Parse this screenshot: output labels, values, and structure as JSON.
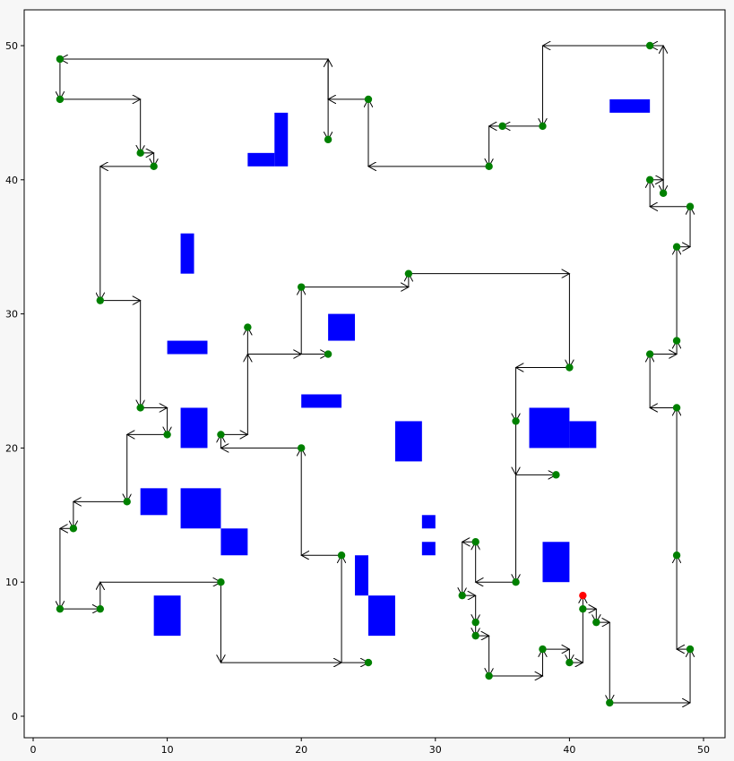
{
  "chart_data": {
    "type": "scatter",
    "title": "",
    "xlabel": "",
    "ylabel": "",
    "xlim": [
      -0.7,
      51.8
    ],
    "ylim": [
      -1.7,
      52.7
    ],
    "xticks": [
      0,
      10,
      20,
      30,
      40,
      50
    ],
    "yticks": [
      0,
      10,
      20,
      30,
      40,
      50
    ],
    "grid": false,
    "colors": {
      "obstacle": "#0000ff",
      "point": "#008000",
      "start": "#ff0000",
      "arrow": "#000000",
      "background": "#ffffff"
    },
    "obstacles": [
      [
        16,
        41,
        2,
        1
      ],
      [
        18,
        41,
        1,
        4
      ],
      [
        43,
        45,
        3,
        1
      ],
      [
        11,
        33,
        1,
        3
      ],
      [
        10,
        27,
        3,
        1
      ],
      [
        22,
        28,
        2,
        2
      ],
      [
        20,
        23,
        3,
        1
      ],
      [
        11,
        20,
        2,
        3
      ],
      [
        27,
        19,
        2,
        3
      ],
      [
        37,
        20,
        3,
        3
      ],
      [
        40,
        20,
        2,
        2
      ],
      [
        8,
        15,
        2,
        2
      ],
      [
        11,
        14,
        3,
        3
      ],
      [
        14,
        12,
        2,
        2
      ],
      [
        29,
        14,
        1,
        1
      ],
      [
        29,
        12,
        1,
        1
      ],
      [
        24,
        9,
        1,
        3
      ],
      [
        25,
        6,
        2,
        3
      ],
      [
        9,
        6,
        2,
        3
      ],
      [
        38,
        10,
        2,
        3
      ]
    ],
    "points": [
      [
        46,
        50
      ],
      [
        2,
        49
      ],
      [
        2,
        46
      ],
      [
        25,
        46
      ],
      [
        8,
        42
      ],
      [
        22,
        43
      ],
      [
        35,
        44
      ],
      [
        38,
        44
      ],
      [
        9,
        41
      ],
      [
        34,
        41
      ],
      [
        46,
        40
      ],
      [
        47,
        39
      ],
      [
        49,
        38
      ],
      [
        48,
        35
      ],
      [
        28,
        33
      ],
      [
        20,
        32
      ],
      [
        5,
        31
      ],
      [
        16,
        29
      ],
      [
        48,
        28
      ],
      [
        22,
        27
      ],
      [
        46,
        27
      ],
      [
        40,
        26
      ],
      [
        8,
        23
      ],
      [
        48,
        23
      ],
      [
        36,
        22
      ],
      [
        10,
        21
      ],
      [
        14,
        21
      ],
      [
        20,
        20
      ],
      [
        39,
        18
      ],
      [
        7,
        16
      ],
      [
        3,
        14
      ],
      [
        33,
        13
      ],
      [
        23,
        12
      ],
      [
        48,
        12
      ],
      [
        14,
        10
      ],
      [
        36,
        10
      ],
      [
        32,
        9
      ],
      [
        2,
        8
      ],
      [
        5,
        8
      ],
      [
        41,
        8
      ],
      [
        33,
        7
      ],
      [
        42,
        7
      ],
      [
        33,
        6
      ],
      [
        38,
        5
      ],
      [
        49,
        5
      ],
      [
        25,
        4
      ],
      [
        40,
        4
      ],
      [
        34,
        3
      ],
      [
        43,
        1
      ]
    ],
    "start": [
      41,
      9
    ],
    "path_segments": [
      [
        [
          46,
          50
        ],
        [
          38,
          50
        ]
      ],
      [
        [
          38,
          50
        ],
        [
          38,
          44
        ]
      ],
      [
        [
          38,
          44
        ],
        [
          35,
          44
        ]
      ],
      [
        [
          35,
          44
        ],
        [
          34,
          44
        ]
      ],
      [
        [
          34,
          44
        ],
        [
          34,
          41
        ]
      ],
      [
        [
          34,
          41
        ],
        [
          25,
          41
        ]
      ],
      [
        [
          25,
          41
        ],
        [
          25,
          46
        ]
      ],
      [
        [
          25,
          46
        ],
        [
          22,
          46
        ]
      ],
      [
        [
          22,
          46
        ],
        [
          22,
          49
        ]
      ],
      [
        [
          22,
          49
        ],
        [
          22,
          43
        ]
      ],
      [
        [
          22,
          49
        ],
        [
          2,
          49
        ]
      ],
      [
        [
          2,
          49
        ],
        [
          2,
          46
        ]
      ],
      [
        [
          2,
          46
        ],
        [
          8,
          46
        ]
      ],
      [
        [
          8,
          46
        ],
        [
          8,
          42
        ]
      ],
      [
        [
          8,
          42
        ],
        [
          9,
          42
        ]
      ],
      [
        [
          9,
          42
        ],
        [
          9,
          41
        ]
      ],
      [
        [
          9,
          41
        ],
        [
          5,
          41
        ]
      ],
      [
        [
          5,
          41
        ],
        [
          5,
          31
        ]
      ],
      [
        [
          5,
          31
        ],
        [
          8,
          31
        ]
      ],
      [
        [
          8,
          31
        ],
        [
          8,
          23
        ]
      ],
      [
        [
          8,
          23
        ],
        [
          10,
          23
        ]
      ],
      [
        [
          10,
          23
        ],
        [
          10,
          21
        ]
      ],
      [
        [
          10,
          21
        ],
        [
          7,
          21
        ]
      ],
      [
        [
          7,
          21
        ],
        [
          7,
          16
        ]
      ],
      [
        [
          7,
          16
        ],
        [
          3,
          16
        ]
      ],
      [
        [
          3,
          16
        ],
        [
          3,
          14
        ]
      ],
      [
        [
          3,
          14
        ],
        [
          2,
          14
        ]
      ],
      [
        [
          2,
          14
        ],
        [
          2,
          8
        ]
      ],
      [
        [
          2,
          8
        ],
        [
          5,
          8
        ]
      ],
      [
        [
          5,
          8
        ],
        [
          5,
          10
        ]
      ],
      [
        [
          5,
          10
        ],
        [
          14,
          10
        ]
      ],
      [
        [
          14,
          10
        ],
        [
          14,
          4
        ]
      ],
      [
        [
          14,
          4
        ],
        [
          23,
          4
        ]
      ],
      [
        [
          23,
          4
        ],
        [
          25,
          4
        ]
      ],
      [
        [
          23,
          4
        ],
        [
          23,
          12
        ]
      ],
      [
        [
          23,
          12
        ],
        [
          20,
          12
        ]
      ],
      [
        [
          20,
          12
        ],
        [
          20,
          20
        ]
      ],
      [
        [
          20,
          20
        ],
        [
          14,
          20
        ]
      ],
      [
        [
          14,
          20
        ],
        [
          14,
          21
        ]
      ],
      [
        [
          14,
          21
        ],
        [
          16,
          21
        ]
      ],
      [
        [
          16,
          21
        ],
        [
          16,
          27
        ]
      ],
      [
        [
          16,
          27
        ],
        [
          16,
          29
        ]
      ],
      [
        [
          16,
          27
        ],
        [
          20,
          27
        ]
      ],
      [
        [
          20,
          27
        ],
        [
          22,
          27
        ]
      ],
      [
        [
          20,
          27
        ],
        [
          20,
          32
        ]
      ],
      [
        [
          20,
          32
        ],
        [
          28,
          32
        ]
      ],
      [
        [
          28,
          32
        ],
        [
          28,
          33
        ]
      ],
      [
        [
          28,
          33
        ],
        [
          40,
          33
        ]
      ],
      [
        [
          40,
          33
        ],
        [
          40,
          26
        ]
      ],
      [
        [
          40,
          26
        ],
        [
          36,
          26
        ]
      ],
      [
        [
          36,
          26
        ],
        [
          36,
          22
        ]
      ],
      [
        [
          36,
          22
        ],
        [
          36,
          18
        ]
      ],
      [
        [
          36,
          18
        ],
        [
          39,
          18
        ]
      ],
      [
        [
          36,
          18
        ],
        [
          36,
          10
        ]
      ],
      [
        [
          36,
          10
        ],
        [
          33,
          10
        ]
      ],
      [
        [
          33,
          10
        ],
        [
          33,
          13
        ]
      ],
      [
        [
          33,
          13
        ],
        [
          32,
          13
        ]
      ],
      [
        [
          32,
          13
        ],
        [
          32,
          9
        ]
      ],
      [
        [
          32,
          9
        ],
        [
          33,
          9
        ]
      ],
      [
        [
          33,
          9
        ],
        [
          33,
          7
        ]
      ],
      [
        [
          33,
          7
        ],
        [
          33,
          6
        ]
      ],
      [
        [
          33,
          6
        ],
        [
          34,
          6
        ]
      ],
      [
        [
          34,
          6
        ],
        [
          34,
          3
        ]
      ],
      [
        [
          34,
          3
        ],
        [
          38,
          3
        ]
      ],
      [
        [
          38,
          3
        ],
        [
          38,
          5
        ]
      ],
      [
        [
          38,
          5
        ],
        [
          40,
          5
        ]
      ],
      [
        [
          40,
          5
        ],
        [
          40,
          4
        ]
      ],
      [
        [
          40,
          4
        ],
        [
          41,
          4
        ]
      ],
      [
        [
          41,
          4
        ],
        [
          41,
          9
        ]
      ],
      [
        [
          41,
          8
        ],
        [
          42,
          8
        ]
      ],
      [
        [
          42,
          8
        ],
        [
          42,
          7
        ]
      ],
      [
        [
          42,
          7
        ],
        [
          43,
          7
        ]
      ],
      [
        [
          43,
          7
        ],
        [
          43,
          1
        ]
      ],
      [
        [
          43,
          1
        ],
        [
          49,
          1
        ]
      ],
      [
        [
          49,
          1
        ],
        [
          49,
          5
        ]
      ],
      [
        [
          49,
          5
        ],
        [
          48,
          5
        ]
      ],
      [
        [
          48,
          5
        ],
        [
          48,
          12
        ]
      ],
      [
        [
          48,
          12
        ],
        [
          48,
          23
        ]
      ],
      [
        [
          48,
          23
        ],
        [
          46,
          23
        ]
      ],
      [
        [
          46,
          23
        ],
        [
          46,
          27
        ]
      ],
      [
        [
          46,
          27
        ],
        [
          48,
          27
        ]
      ],
      [
        [
          48,
          27
        ],
        [
          48,
          28
        ]
      ],
      [
        [
          48,
          28
        ],
        [
          48,
          35
        ]
      ],
      [
        [
          48,
          35
        ],
        [
          49,
          35
        ]
      ],
      [
        [
          49,
          35
        ],
        [
          49,
          38
        ]
      ],
      [
        [
          49,
          38
        ],
        [
          46,
          38
        ]
      ],
      [
        [
          46,
          38
        ],
        [
          46,
          40
        ]
      ],
      [
        [
          46,
          40
        ],
        [
          47,
          40
        ]
      ],
      [
        [
          47,
          40
        ],
        [
          47,
          39
        ]
      ],
      [
        [
          47,
          39
        ],
        [
          47,
          50
        ]
      ],
      [
        [
          47,
          50
        ],
        [
          46,
          50
        ]
      ]
    ]
  }
}
